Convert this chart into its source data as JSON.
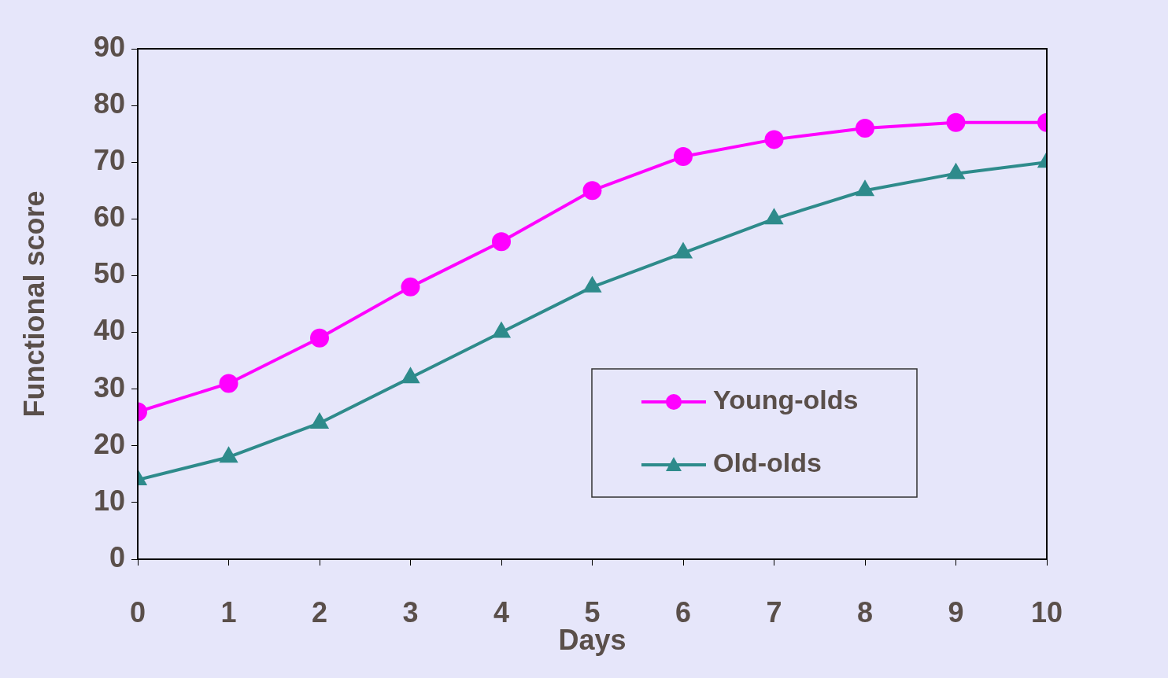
{
  "chart_data": {
    "type": "line",
    "xlabel": "Days",
    "ylabel": "Functional score",
    "x": [
      0,
      1,
      2,
      3,
      4,
      5,
      6,
      7,
      8,
      9,
      10
    ],
    "xlim": [
      0,
      10
    ],
    "xticks": [
      0,
      1,
      2,
      3,
      4,
      5,
      6,
      7,
      8,
      9,
      10
    ],
    "ylim": [
      0,
      90
    ],
    "yticks": [
      0,
      10,
      20,
      30,
      40,
      50,
      60,
      70,
      80,
      90
    ],
    "series": [
      {
        "name": "Young-olds",
        "color": "#ff00ff",
        "marker": "circle",
        "values": [
          26,
          31,
          39,
          48,
          56,
          65,
          71,
          74,
          76,
          77,
          77
        ]
      },
      {
        "name": "Old-olds",
        "color": "#2e8b8b",
        "marker": "triangle",
        "values": [
          14,
          18,
          24,
          32,
          40,
          48,
          54,
          60,
          65,
          68,
          70
        ]
      }
    ],
    "grid": false,
    "legend": "bottom right",
    "line_style": "solid"
  }
}
